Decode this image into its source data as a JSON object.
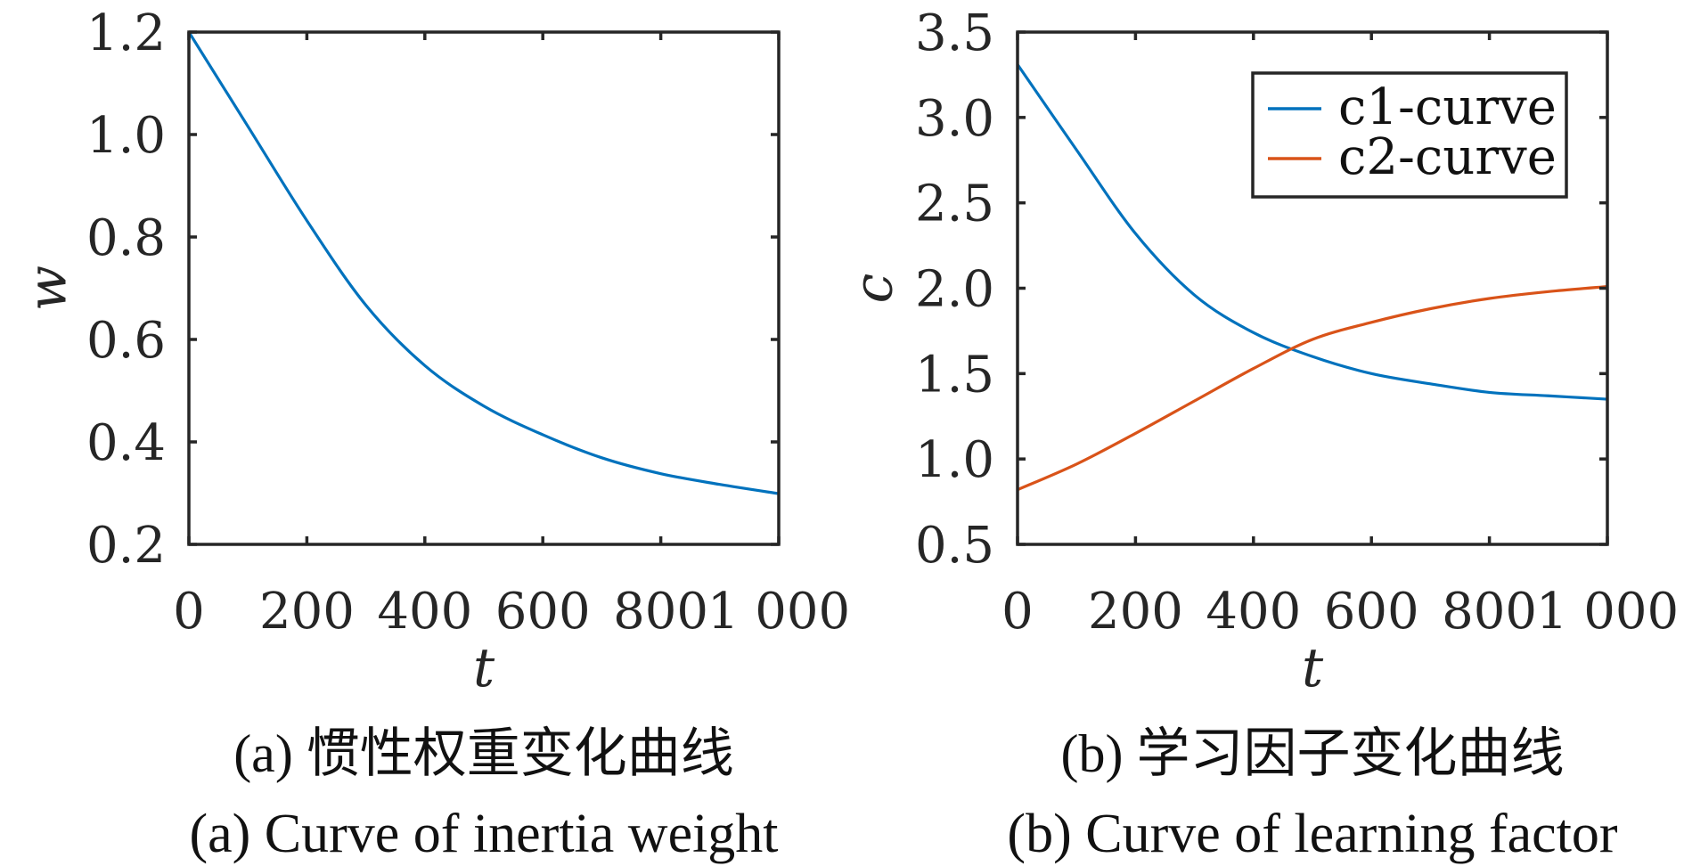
{
  "colors": {
    "axis": "#262626",
    "series_blue": "#0072BD",
    "series_orange": "#D95319",
    "background": "#ffffff"
  },
  "chart_data": [
    {
      "id": "a",
      "type": "line",
      "title": "",
      "xlabel": "t",
      "ylabel": "w",
      "xlim": [
        0,
        1000
      ],
      "ylim": [
        0.2,
        1.2
      ],
      "xticks": [
        0,
        200,
        400,
        600,
        800,
        1000
      ],
      "xtick_labels": [
        "0",
        "200",
        "400",
        "600",
        "800",
        "1 000"
      ],
      "yticks": [
        0.2,
        0.4,
        0.6,
        0.8,
        1.0,
        1.2
      ],
      "ytick_labels": [
        "0.2",
        "0.4",
        "0.6",
        "0.8",
        "1.0",
        "1.2"
      ],
      "grid": false,
      "legend": null,
      "x": [
        0,
        100,
        200,
        300,
        400,
        500,
        600,
        700,
        800,
        900,
        1000
      ],
      "series": [
        {
          "name": "w",
          "color": "#0072BD",
          "values": [
            1.2,
            1.016,
            0.832,
            0.667,
            0.549,
            0.47,
            0.414,
            0.369,
            0.338,
            0.317,
            0.299
          ]
        }
      ],
      "caption_cn": "(a) 惯性权重变化曲线",
      "caption_en": "(a) Curve of inertia weight"
    },
    {
      "id": "b",
      "type": "line",
      "title": "",
      "xlabel": "t",
      "ylabel": "c",
      "xlim": [
        0,
        1000
      ],
      "ylim": [
        0.5,
        3.5
      ],
      "xticks": [
        0,
        200,
        400,
        600,
        800,
        1000
      ],
      "xtick_labels": [
        "0",
        "200",
        "400",
        "600",
        "800",
        "1 000"
      ],
      "yticks": [
        0.5,
        1.0,
        1.5,
        2.0,
        2.5,
        3.0,
        3.5
      ],
      "ytick_labels": [
        "0.5",
        "1.0",
        "1.5",
        "2.0",
        "2.5",
        "3.0",
        "3.5"
      ],
      "grid": false,
      "legend": "top-right",
      "x": [
        0,
        100,
        200,
        300,
        400,
        500,
        600,
        700,
        800,
        900,
        1000
      ],
      "series": [
        {
          "name": "c1-curve",
          "color": "#0072BD",
          "values": [
            3.31,
            2.81,
            2.32,
            1.96,
            1.74,
            1.6,
            1.5,
            1.44,
            1.39,
            1.37,
            1.35
          ]
        },
        {
          "name": "c2-curve",
          "color": "#D95319",
          "values": [
            0.82,
            0.97,
            1.15,
            1.34,
            1.53,
            1.7,
            1.8,
            1.88,
            1.94,
            1.98,
            2.01
          ]
        }
      ],
      "caption_cn": "(b) 学习因子变化曲线",
      "caption_en": "(b) Curve of learning factor"
    }
  ]
}
